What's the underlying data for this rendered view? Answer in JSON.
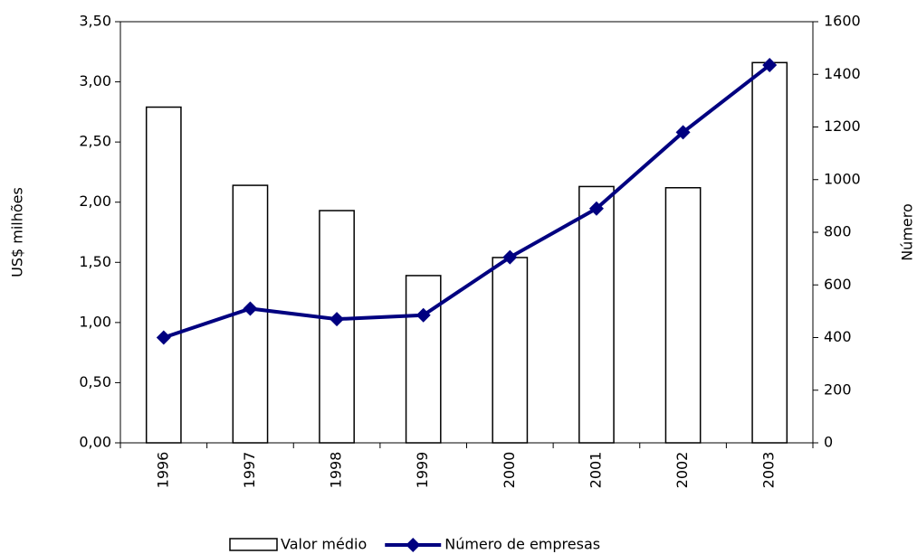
{
  "chart_data": {
    "type": "combo",
    "y_label": "US$ milhões",
    "y2_label": "Número",
    "categories": [
      "1996",
      "1997",
      "1998",
      "1999",
      "2000",
      "2001",
      "2002",
      "2003"
    ],
    "series": [
      {
        "name": "Valor médio",
        "type": "bar",
        "color": "#ffffff",
        "values": [
          2.79,
          2.14,
          1.93,
          1.39,
          1.54,
          2.13,
          2.12,
          3.16
        ]
      },
      {
        "name": "Número de empresas",
        "type": "line",
        "axis": "y2",
        "color": "#000080",
        "values": [
          400,
          510,
          470,
          485,
          705,
          890,
          1180,
          1435
        ]
      }
    ],
    "ylim": [
      0,
      3.5
    ],
    "yticks": [
      {
        "value": 0,
        "label": "0,00"
      },
      {
        "value": 0.5,
        "label": "0,50"
      },
      {
        "value": 1,
        "label": "1,00"
      },
      {
        "value": 1.5,
        "label": "1,50"
      },
      {
        "value": 2,
        "label": "2,00"
      },
      {
        "value": 2.5,
        "label": "2,50"
      },
      {
        "value": 3,
        "label": "3,00"
      },
      {
        "value": 3.5,
        "label": "3,50"
      }
    ],
    "y2lim": [
      0,
      1600
    ],
    "y2ticks": [
      0,
      200,
      400,
      600,
      800,
      1000,
      1200,
      1400,
      1600
    ],
    "grid": false
  }
}
